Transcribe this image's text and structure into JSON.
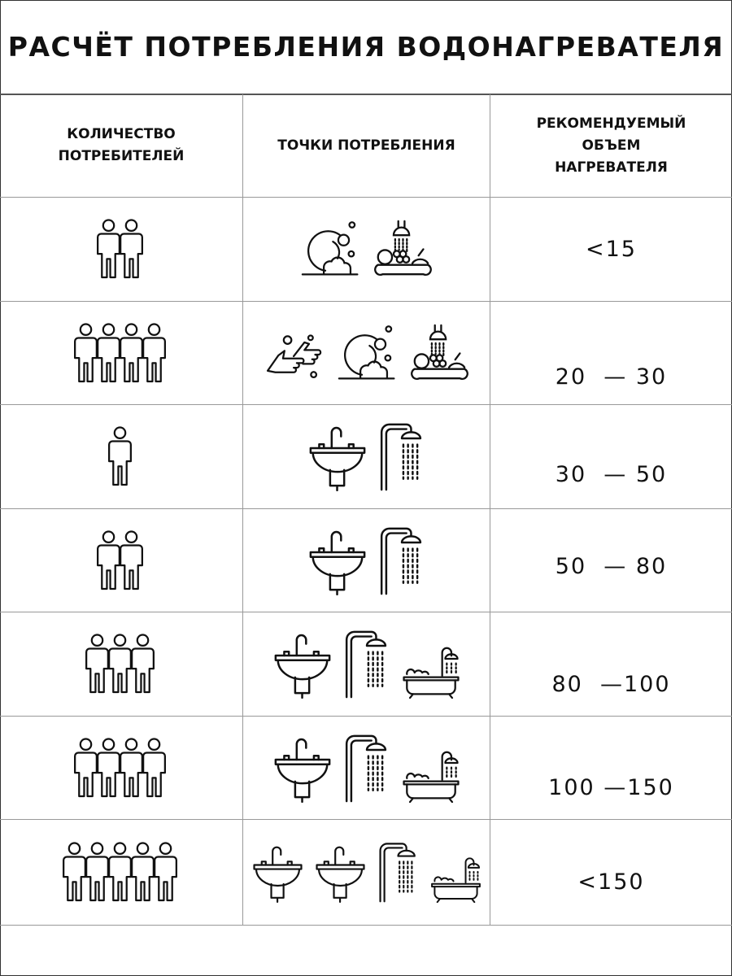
{
  "title": "РАСЧЁТ ПОТРЕБЛЕНИЯ ВОДОНАГРЕВАТЕЛЯ",
  "headers": {
    "consumers": "КОЛИЧЕСТВО\nПОТРЕБИТЕЛЕЙ",
    "points": "ТОЧКИ ПОТРЕБЛЕНИЯ",
    "volume": "РЕКОМЕНДУЕМЫЙ\nОБЪЕМ\nНАГРЕВАТЕЛЯ"
  },
  "rows": [
    {
      "people": 2,
      "points": [
        "dishwashing",
        "fruit-washing"
      ],
      "volume": "<15"
    },
    {
      "people": 4,
      "points": [
        "hand-washing",
        "dishwashing",
        "fruit-washing"
      ],
      "volume": "20  — 30"
    },
    {
      "people": 1,
      "points": [
        "sink",
        "shower"
      ],
      "volume": "30  — 50"
    },
    {
      "people": 2,
      "points": [
        "sink",
        "shower"
      ],
      "volume": "50  — 80"
    },
    {
      "people": 3,
      "points": [
        "sink",
        "shower",
        "bathtub"
      ],
      "volume": "80  —100"
    },
    {
      "people": 4,
      "points": [
        "sink",
        "shower",
        "bathtub"
      ],
      "volume": "100 —150"
    },
    {
      "people": 5,
      "points": [
        "sink",
        "sink",
        "shower",
        "bathtub"
      ],
      "volume": "<150"
    }
  ]
}
